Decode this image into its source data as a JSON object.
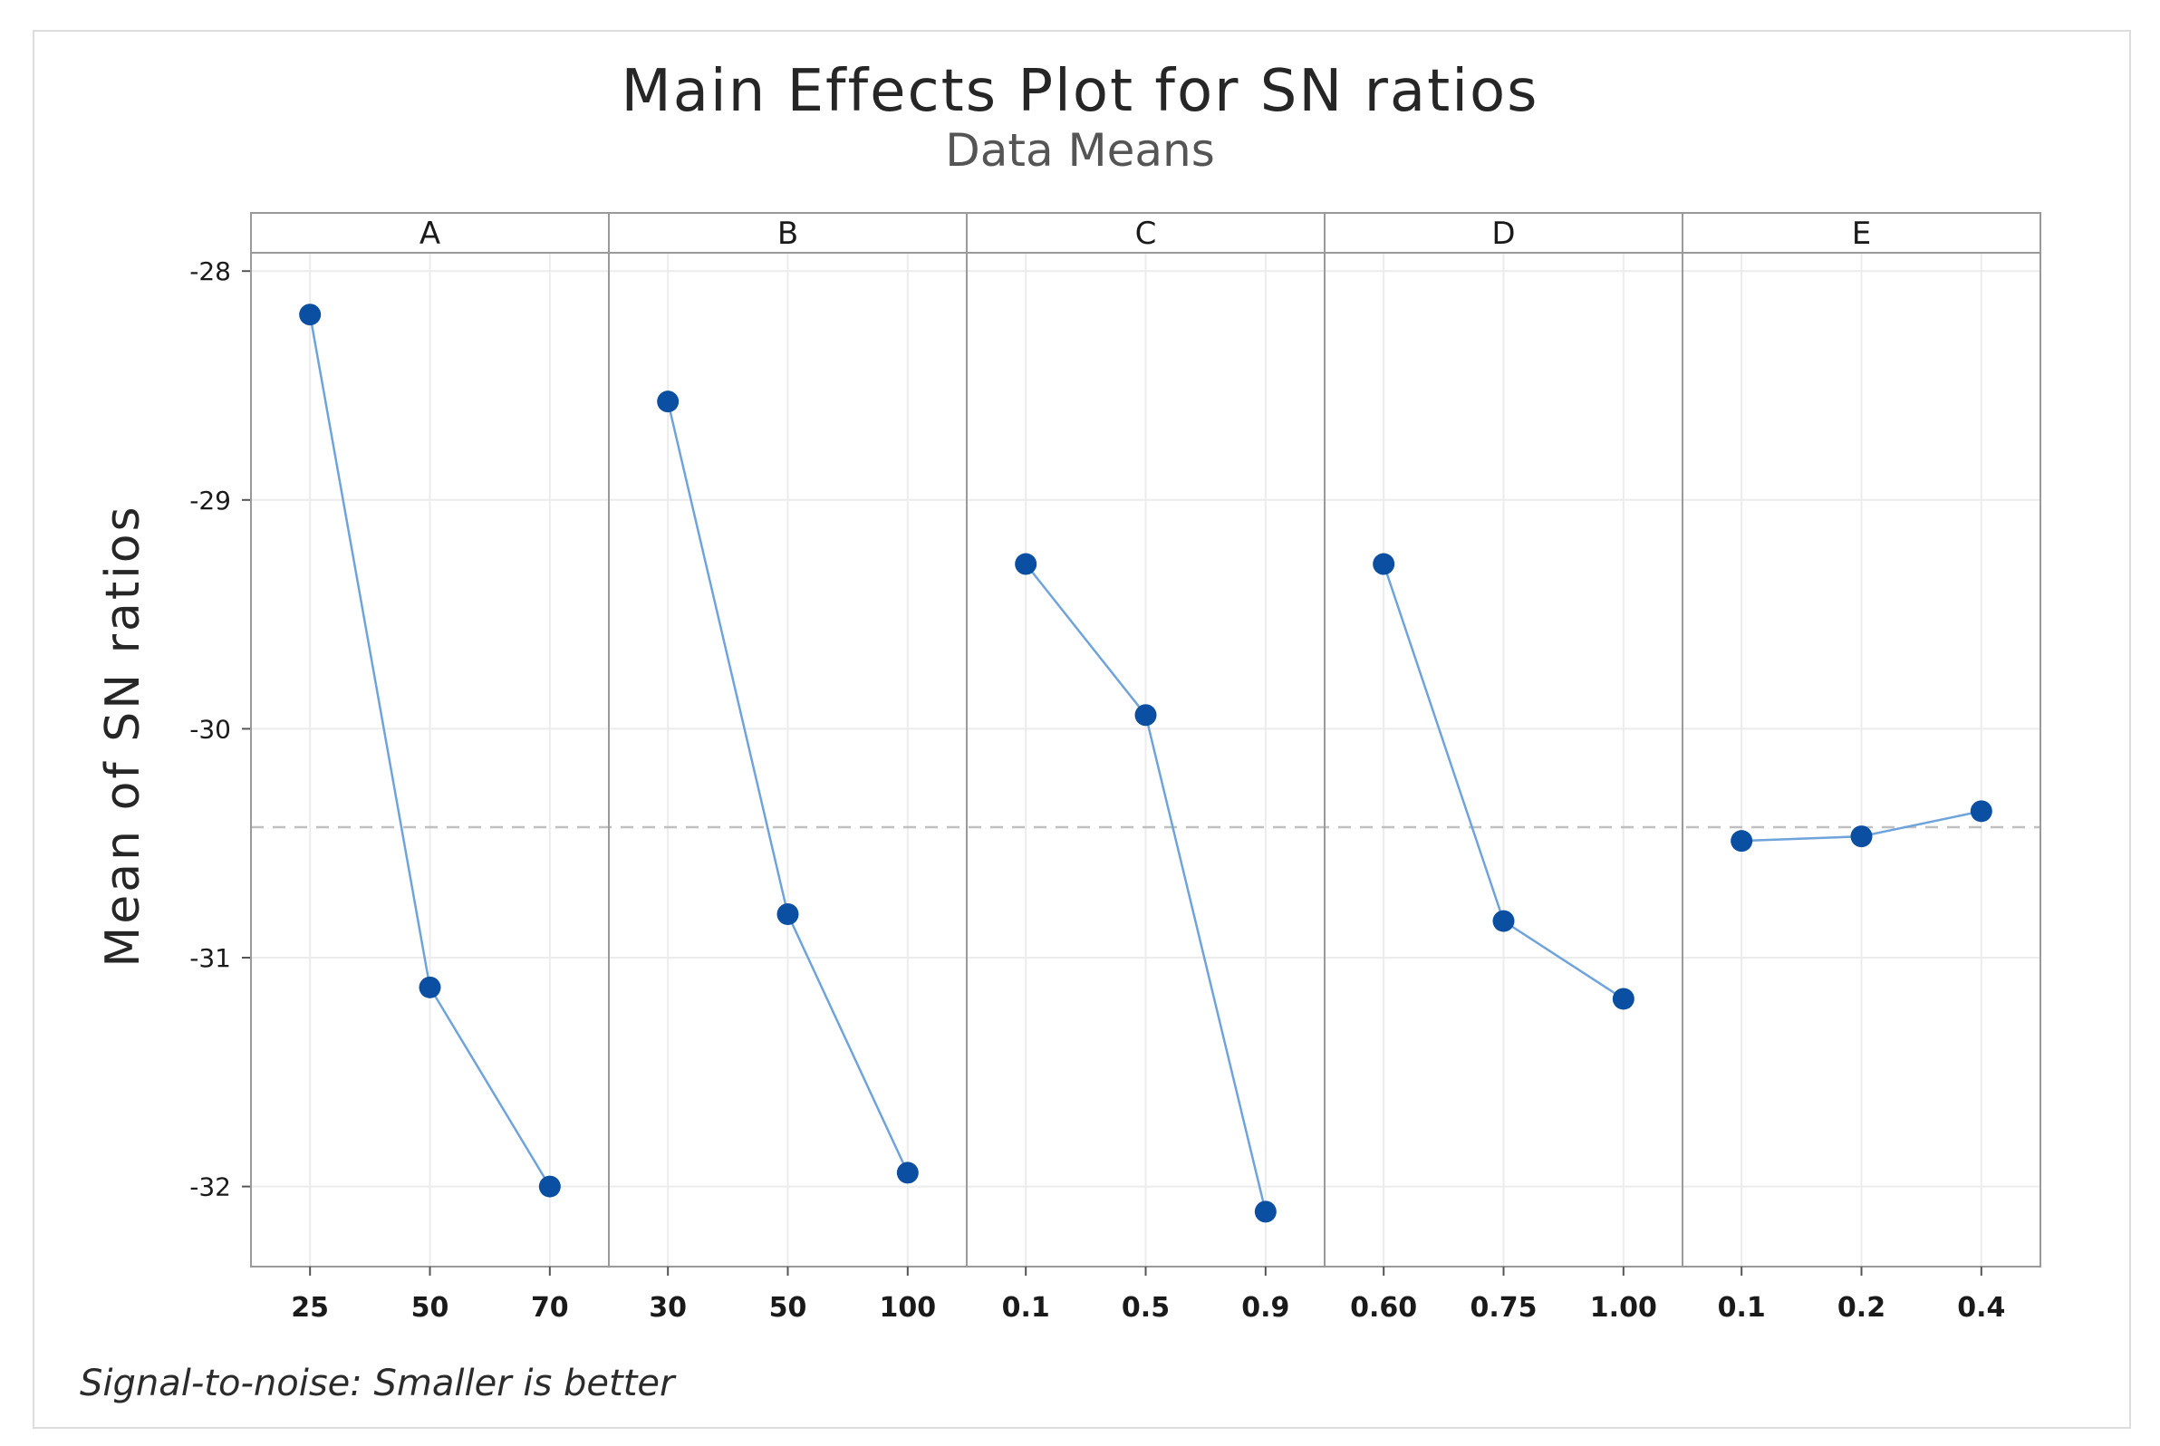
{
  "chart_data": {
    "type": "line",
    "title": "Main Effects Plot for SN ratios",
    "subtitle": "Data Means",
    "ylabel": "Mean of SN ratios",
    "ylim": [
      -32.35,
      -27.92
    ],
    "yticks": [
      -28,
      -29,
      -30,
      -31,
      -32
    ],
    "ytick_labels": [
      "-28",
      "-29",
      "-30",
      "-31",
      "-32"
    ],
    "reference_line": -30.43,
    "footnote": "Signal-to-noise: Smaller is better",
    "grid": true,
    "colors": {
      "line": "#6fa3dc",
      "marker": "#0b4fa3",
      "reference": "#bfbfbf",
      "grid": "#ececec",
      "panel_border": "#9a9a9a"
    },
    "panels": [
      {
        "factor": "A",
        "levels": [
          "25",
          "50",
          "70"
        ],
        "values": [
          -28.19,
          -31.13,
          -32.0
        ]
      },
      {
        "factor": "B",
        "levels": [
          "30",
          "50",
          "100"
        ],
        "values": [
          -28.57,
          -30.81,
          -31.94
        ]
      },
      {
        "factor": "C",
        "levels": [
          "0.1",
          "0.5",
          "0.9"
        ],
        "values": [
          -29.28,
          -29.94,
          -32.11
        ]
      },
      {
        "factor": "D",
        "levels": [
          "0.60",
          "0.75",
          "1.00"
        ],
        "values": [
          -29.28,
          -30.84,
          -31.18
        ]
      },
      {
        "factor": "E",
        "levels": [
          "0.1",
          "0.2",
          "0.4"
        ],
        "values": [
          -30.49,
          -30.47,
          -30.36
        ]
      }
    ]
  }
}
